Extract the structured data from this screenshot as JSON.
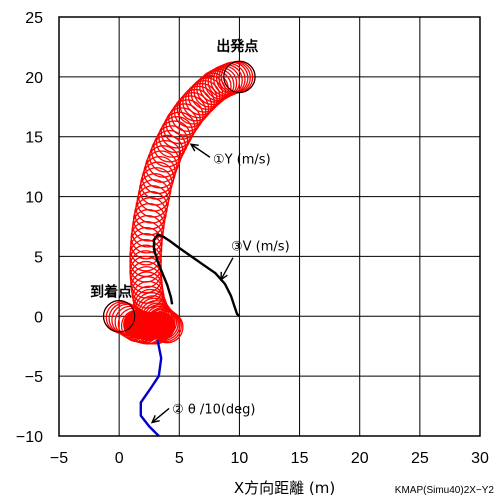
{
  "chart_data": {
    "type": "line",
    "title": "",
    "xlabel": "X方向距離 (m)",
    "ylabel": "",
    "xlim": [
      -5,
      30
    ],
    "ylim": [
      -10,
      25
    ],
    "x_ticks": [
      "−5",
      "0",
      "5",
      "10",
      "15",
      "20",
      "25",
      "30"
    ],
    "y_ticks": [
      "25",
      "20",
      "15",
      "10",
      "5",
      "0",
      "−5",
      "−10"
    ],
    "grid": true,
    "legend": "none",
    "colors": {
      "circles": "#ff0000",
      "velocity": "#000000",
      "theta": "#0000cc"
    },
    "places": {
      "start": "出発点",
      "arrival": "到着点"
    },
    "start_point": {
      "x": 10,
      "y": 20
    },
    "arrival_point": {
      "x": 0,
      "y": 0
    },
    "circle_radius": 1.3,
    "series": [
      {
        "name": "①Y (m/s)",
        "kind": "circles",
        "points": [
          [
            10.0,
            20.0
          ],
          [
            9.4,
            19.9
          ],
          [
            8.7,
            19.6
          ],
          [
            8.0,
            19.2
          ],
          [
            7.3,
            18.6
          ],
          [
            6.6,
            17.9
          ],
          [
            5.9,
            17.1
          ],
          [
            5.2,
            16.1
          ],
          [
            4.6,
            15.0
          ],
          [
            4.0,
            13.8
          ],
          [
            3.5,
            12.5
          ],
          [
            3.1,
            11.1
          ],
          [
            2.8,
            9.6
          ],
          [
            2.5,
            8.1
          ],
          [
            2.3,
            6.6
          ],
          [
            2.2,
            5.1
          ],
          [
            2.2,
            3.7
          ],
          [
            2.3,
            2.4
          ],
          [
            2.5,
            1.2
          ],
          [
            2.8,
            0.4
          ],
          [
            3.2,
            -0.2
          ],
          [
            3.6,
            -0.6
          ],
          [
            4.0,
            -0.9
          ],
          [
            0.0,
            0.0
          ],
          [
            0.7,
            -0.3
          ],
          [
            1.5,
            -0.8
          ],
          [
            2.3,
            -1.0
          ],
          [
            3.0,
            -1.0
          ]
        ],
        "label_at": [
          7.8,
          13.2
        ]
      },
      {
        "name": "③V (m/s)",
        "kind": "line",
        "points": [
          [
            10.0,
            0.0
          ],
          [
            9.8,
            0.2
          ],
          [
            9.6,
            0.8
          ],
          [
            9.3,
            1.7
          ],
          [
            8.8,
            2.7
          ],
          [
            8.0,
            3.6
          ],
          [
            7.0,
            4.3
          ],
          [
            6.0,
            5.0
          ],
          [
            5.0,
            5.7
          ],
          [
            4.2,
            6.3
          ],
          [
            3.6,
            6.7
          ],
          [
            3.2,
            6.8
          ],
          [
            2.9,
            6.4
          ],
          [
            2.9,
            5.6
          ],
          [
            3.2,
            4.6
          ],
          [
            3.6,
            3.6
          ],
          [
            4.0,
            2.6
          ],
          [
            4.3,
            1.6
          ],
          [
            4.4,
            1.0
          ]
        ],
        "label_at": [
          9.3,
          5.9
        ]
      },
      {
        "name": "② θ /10(deg)",
        "kind": "line",
        "points": [
          [
            3.2,
            -2.0
          ],
          [
            3.5,
            -3.5
          ],
          [
            3.3,
            -5.0
          ],
          [
            2.5,
            -6.2
          ],
          [
            1.8,
            -7.2
          ],
          [
            1.8,
            -8.3
          ],
          [
            2.5,
            -9.2
          ],
          [
            3.3,
            -10.0
          ]
        ],
        "label_at": [
          4.4,
          -7.7
        ]
      }
    ],
    "credit": "KMAP(Simu40)2X−Y2"
  }
}
